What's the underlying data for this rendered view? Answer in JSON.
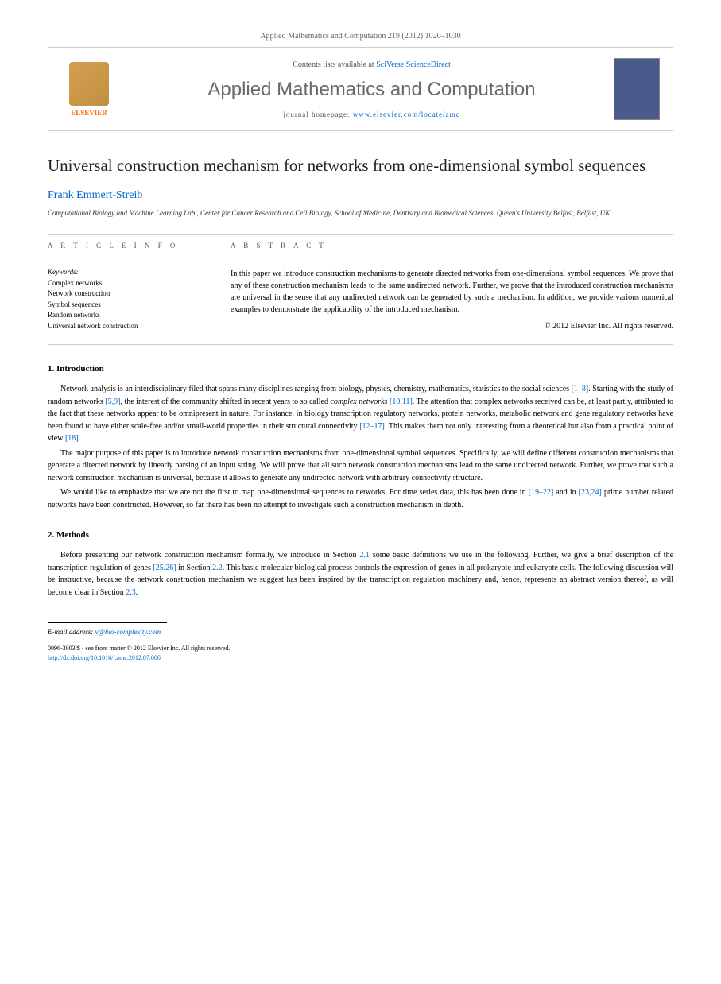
{
  "header": {
    "citation": "Applied Mathematics and Computation 219 (2012) 1020–1030",
    "contents_prefix": "Contents lists available at ",
    "contents_link": "SciVerse ScienceDirect",
    "journal": "Applied Mathematics and Computation",
    "homepage_prefix": "journal homepage: ",
    "homepage_link": "www.elsevier.com/locate/amc",
    "logo_text": "ELSEVIER"
  },
  "title": "Universal construction mechanism for networks from one-dimensional symbol sequences",
  "author": "Frank Emmert-Streib",
  "affiliation": "Computational Biology and Machine Learning Lab., Center for Cancer Research and Cell Biology, School of Medicine, Dentistry and Biomedical Sciences, Queen's University Belfast, Belfast, UK",
  "article_info": {
    "heading": "A R T I C L E   I N F O",
    "keywords_label": "Keywords:",
    "keywords": [
      "Complex networks",
      "Network construction",
      "Symbol sequences",
      "Random networks",
      "Universal network construction"
    ]
  },
  "abstract": {
    "heading": "A B S T R A C T",
    "text": "In this paper we introduce construction mechanisms to generate directed networks from one-dimensional symbol sequences. We prove that any of these construction mechanism leads to the same undirected network. Further, we prove that the introduced construction mechanisms are universal in the sense that any undirected network can be generated by such a mechanism. In addition, we provide various numerical examples to demonstrate the applicability of the introduced mechanism.",
    "copyright": "© 2012 Elsevier Inc. All rights reserved."
  },
  "sections": {
    "intro": {
      "heading": "1. Introduction",
      "p1_a": "Network analysis is an interdisciplinary filed that spans many disciplines ranging from biology, physics, chemistry, mathematics, statistics to the social sciences ",
      "p1_r1": "[1–8]",
      "p1_b": ". Starting with the study of random networks ",
      "p1_r2": "[5,9]",
      "p1_c": ", the interest of the community shifted in recent years to so called ",
      "p1_italic": "complex networks",
      "p1_d": " ",
      "p1_r3": "[10,11]",
      "p1_e": ". The attention that complex networks received can be, at least partly, attributed to the fact that these networks appear to be omnipresent in nature. For instance, in biology transcription regulatory networks, protein networks, metabolic network and gene regulatory networks have been found to have either scale-free and/or small-world properties in their structural connectivity ",
      "p1_r4": "[12–17]",
      "p1_f": ". This makes them not only interesting from a theoretical but also from a practical point of view ",
      "p1_r5": "[18]",
      "p1_g": ".",
      "p2": "The major purpose of this paper is to introduce network construction mechanisms from one-dimensional symbol sequences. Specifically, we will define different construction mechanisms that generate a directed network by linearly parsing of an input string. We will prove that all such network construction mechanisms lead to the same undirected network. Further, we prove that such a network construction mechanism is universal, because it allows to generate any undirected network with arbitrary connectivity structure.",
      "p3_a": "We would like to emphasize that we are not the first to map one-dimensional sequences to networks. For time series data, this has been done in ",
      "p3_r1": "[19–22]",
      "p3_b": " and in ",
      "p3_r2": "[23,24]",
      "p3_c": " prime number related networks have been constructed. However, so far there has been no attempt to investigate such a construction mechanism in depth."
    },
    "methods": {
      "heading": "2. Methods",
      "p1_a": "Before presenting our network construction mechanism formally, we introduce in Section ",
      "p1_r1": "2.1",
      "p1_b": " some basic definitions we use in the following. Further, we give a brief description of the transcription regulation of genes ",
      "p1_r2": "[25,26]",
      "p1_c": " in Section ",
      "p1_r3": "2.2",
      "p1_d": ". This basic molecular biological process controls the expression of genes in all prokaryote and eukaryote cells. The following discussion will be instructive, because the network construction mechanism we suggest has been inspired by the transcription regulation machinery and, hence, represents an abstract version thereof, as will become clear in Section ",
      "p1_r4": "2.3",
      "p1_e": "."
    }
  },
  "footer": {
    "email_label": "E-mail address:",
    "email": "v@bio-complexity.com",
    "line1": "0096-3003/$ - see front matter © 2012 Elsevier Inc. All rights reserved.",
    "doi": "http://dx.doi.org/10.1016/j.amc.2012.07.006"
  }
}
